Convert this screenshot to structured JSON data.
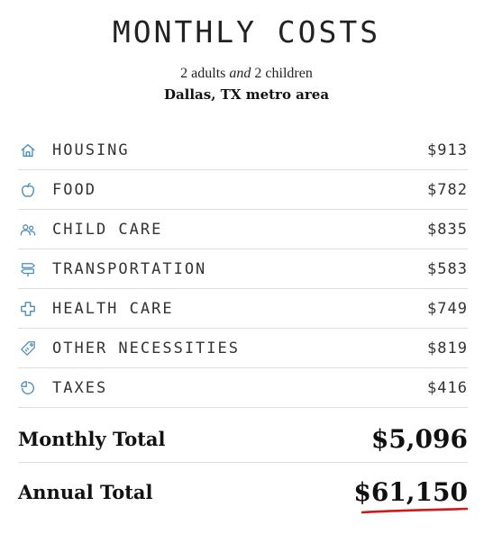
{
  "header": {
    "title": "MONTHLY COSTS",
    "subtitle_pre": "2 adults ",
    "subtitle_em": "and",
    "subtitle_post": " 2 children",
    "location": "Dallas, TX metro area"
  },
  "colors": {
    "icon": "#4a8fb8",
    "accent_underline": "#d0191b"
  },
  "items": [
    {
      "label": "HOUSING",
      "value": "$913",
      "icon": "house-icon"
    },
    {
      "label": "FOOD",
      "value": "$782",
      "icon": "apple-icon"
    },
    {
      "label": "CHILD CARE",
      "value": "$835",
      "icon": "people-icon"
    },
    {
      "label": "TRANSPORTATION",
      "value": "$583",
      "icon": "signpost-icon"
    },
    {
      "label": "HEALTH CARE",
      "value": "$749",
      "icon": "medical-cross-icon"
    },
    {
      "label": "OTHER NECESSITIES",
      "value": "$819",
      "icon": "tag-icon"
    },
    {
      "label": "TAXES",
      "value": "$416",
      "icon": "pie-chart-icon"
    }
  ],
  "totals": {
    "monthly_label": "Monthly Total",
    "monthly_value": "$5,096",
    "annual_label": "Annual Total",
    "annual_value": "$61,150"
  }
}
